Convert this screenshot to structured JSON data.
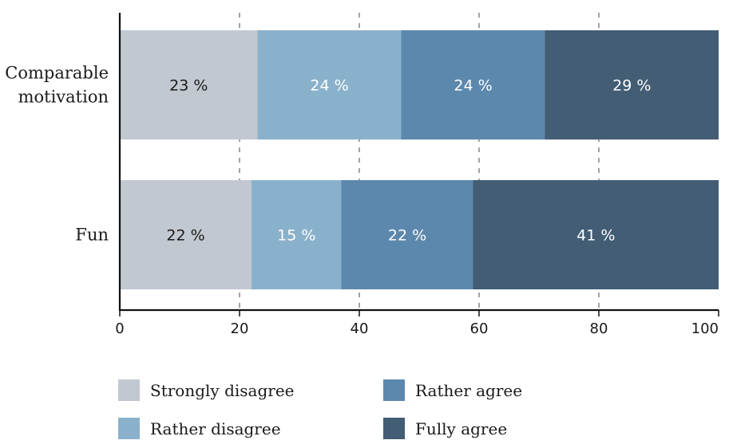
{
  "chart_data": {
    "type": "bar",
    "orientation": "horizontal",
    "stacked": true,
    "categories": [
      "Comparable\nmotivation",
      "Fun"
    ],
    "series": [
      {
        "name": "Strongly disagree",
        "color": "#c2c8cf",
        "values": [
          23,
          22
        ],
        "labels": [
          "23 %",
          "22 %"
        ],
        "label_color": "#1a1a1a"
      },
      {
        "name": "Rather disagree",
        "color": "#8ab1cb",
        "values": [
          24,
          15
        ],
        "labels": [
          "24 %",
          "15 %"
        ],
        "label_color": "#ffffff"
      },
      {
        "name": "Rather agree",
        "color": "#5c88ad",
        "values": [
          24,
          22
        ],
        "labels": [
          "24 %",
          "22 %"
        ],
        "label_color": "#ffffff"
      },
      {
        "name": "Fully agree",
        "color": "#425d74",
        "values": [
          29,
          41
        ],
        "labels": [
          "29 %",
          "41 %"
        ],
        "label_color": "#ffffff"
      }
    ],
    "xlim": [
      0,
      100
    ],
    "xticks": [
      0,
      20,
      40,
      60,
      80,
      100
    ],
    "xtick_labels": [
      "0",
      "20",
      "40",
      "60",
      "80",
      "100"
    ],
    "grid": "vertical dashed",
    "legend_position": "bottom"
  }
}
